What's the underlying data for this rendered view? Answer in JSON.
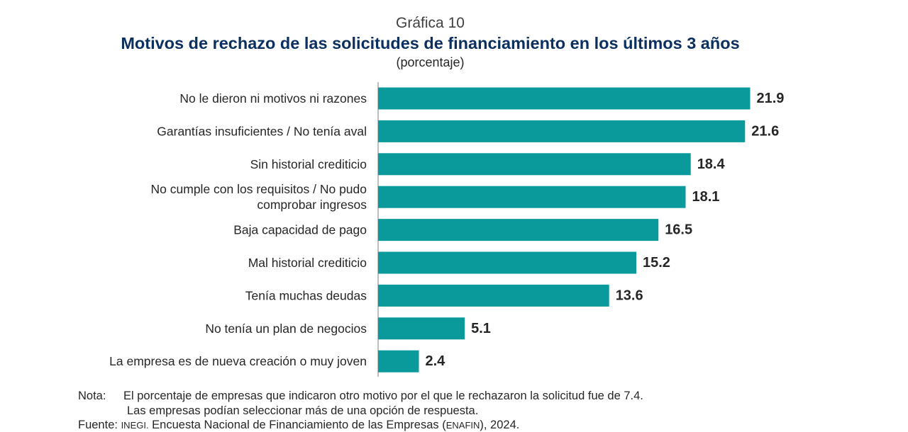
{
  "header": {
    "figure_label": "Gráfica 10",
    "title": "Motivos de rechazo de las solicitudes de financiamiento en los últimos 3 años",
    "subtitle": "(porcentaje)"
  },
  "chart_data": {
    "type": "bar",
    "orientation": "horizontal",
    "title": "Motivos de rechazo de las solicitudes de financiamiento en los últimos 3 años",
    "subtitle": "(porcentaje)",
    "xlabel": "",
    "ylabel": "",
    "xlim": [
      0,
      24
    ],
    "grid": false,
    "categories": [
      [
        "No le dieron ni motivos ni razones"
      ],
      [
        "Garantías insuficientes / No tenía aval"
      ],
      [
        "Sin historial crediticio"
      ],
      [
        "No cumple con los requisitos / No pudo",
        "comprobar ingresos"
      ],
      [
        "Baja capacidad de pago"
      ],
      [
        "Mal historial crediticio"
      ],
      [
        "Tenía muchas deudas"
      ],
      [
        "No tenía un plan de negocios"
      ],
      [
        "La empresa es de nueva creación o muy joven"
      ]
    ],
    "values": [
      21.9,
      21.6,
      18.4,
      18.1,
      16.5,
      15.2,
      13.6,
      5.1,
      2.4
    ],
    "value_labels": [
      "21.9",
      "21.6",
      "18.4",
      "18.1",
      "16.5",
      "15.2",
      "13.6",
      "5.1",
      "2.4"
    ],
    "bar_color": "#0a9a9c"
  },
  "notes": {
    "prefix": "Nota:",
    "line1": "El porcentaje de empresas que indicaron otro motivo por el que le rechazaron la solicitud fue de 7.4.",
    "line2": "Las empresas podían seleccionar más de una opción de respuesta.",
    "source_prefix": "Fuente:",
    "source_org": "INEGI.",
    "source_text_1": "Encuesta Nacional de Financiamiento de las Empresas (",
    "source_acronym": "ENAFIN",
    "source_text_2": "), 2024."
  }
}
